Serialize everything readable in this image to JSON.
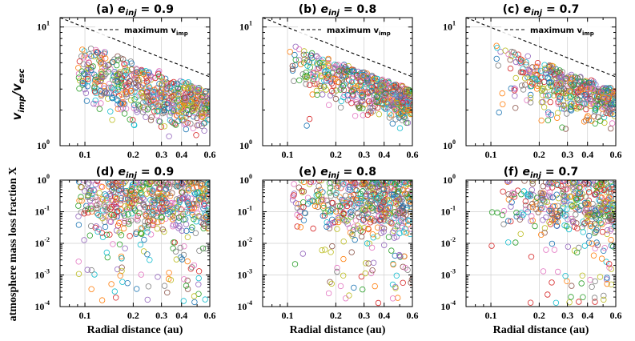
{
  "figure": {
    "xlabel": "Radial distance (au)",
    "ylabel_top": "v_imp/v_esc",
    "ylabel_bottom": "atmosphere mass loss fraction X",
    "legend_label": "maximum v_imp",
    "colors": [
      "#1f77b4",
      "#ff7f0e",
      "#2ca02c",
      "#d62728",
      "#9467bd",
      "#8c564b",
      "#e377c2",
      "#7f7f7f",
      "#bcbd22",
      "#17becf"
    ]
  },
  "chart_data": [
    {
      "type": "scatter",
      "panel": "a",
      "row": "top",
      "title": "(a) e_inj = 0.9",
      "title_prefix": "(a) ",
      "title_sub": "inj",
      "title_value": " = 0.9",
      "e_inj": 0.9,
      "xscale": "log",
      "yscale": "log",
      "xlim": [
        0.07,
        0.6
      ],
      "ylim": [
        1,
        12
      ],
      "xticks": [
        0.1,
        0.2,
        0.3,
        0.4,
        0.6
      ],
      "xticklabels": [
        "0.1",
        "0.2",
        "0.3",
        "0.4",
        "0.6"
      ],
      "yticks": [
        1,
        10
      ],
      "yticklabels": [
        "10^0",
        "10^1"
      ],
      "grid": true,
      "legend": {
        "entries": [
          "maximum v_imp"
        ],
        "position": "upper-right"
      },
      "max_line": {
        "x": [
          0.07,
          0.6
        ],
        "y": [
          12,
          3.8
        ]
      },
      "points_summary": {
        "x_range": [
          0.09,
          0.6
        ],
        "y_range": [
          1.2,
          9.5
        ],
        "approx_count": 600
      }
    },
    {
      "type": "scatter",
      "panel": "b",
      "row": "top",
      "title": "(b) e_inj = 0.8",
      "title_prefix": "(b) ",
      "title_sub": "inj",
      "title_value": " = 0.8",
      "e_inj": 0.8,
      "xscale": "log",
      "yscale": "log",
      "xlim": [
        0.07,
        0.6
      ],
      "ylim": [
        1,
        12
      ],
      "xticks": [
        0.1,
        0.2,
        0.3,
        0.4,
        0.6
      ],
      "xticklabels": [
        "0.1",
        "0.2",
        "0.3",
        "0.4",
        "0.6"
      ],
      "yticks": [
        1,
        10
      ],
      "yticklabels": [
        "10^0",
        "10^1"
      ],
      "grid": true,
      "legend": {
        "entries": [
          "maximum v_imp"
        ],
        "position": "upper-right"
      },
      "max_line": {
        "x": [
          0.07,
          0.6
        ],
        "y": [
          12,
          3.8
        ]
      },
      "points_summary": {
        "x_range": [
          0.1,
          0.6
        ],
        "y_range": [
          1.0,
          6.5
        ],
        "approx_count": 550
      }
    },
    {
      "type": "scatter",
      "panel": "c",
      "row": "top",
      "title": "(c) e_inj = 0.7",
      "title_prefix": "(c) ",
      "title_sub": "inj",
      "title_value": " = 0.7",
      "e_inj": 0.7,
      "xscale": "log",
      "yscale": "log",
      "xlim": [
        0.07,
        0.6
      ],
      "ylim": [
        1,
        12
      ],
      "xticks": [
        0.1,
        0.2,
        0.3,
        0.4,
        0.6
      ],
      "xticklabels": [
        "0.1",
        "0.2",
        "0.3",
        "0.4",
        "0.6"
      ],
      "yticks": [
        1,
        10
      ],
      "yticklabels": [
        "10^0",
        "10^1"
      ],
      "grid": true,
      "legend": {
        "entries": [
          "maximum v_imp"
        ],
        "position": "upper-right"
      },
      "max_line": {
        "x": [
          0.07,
          0.6
        ],
        "y": [
          12,
          3.8
        ]
      },
      "points_summary": {
        "x_range": [
          0.1,
          0.6
        ],
        "y_range": [
          1.0,
          6.5
        ],
        "approx_count": 450
      }
    },
    {
      "type": "scatter",
      "panel": "d",
      "row": "bottom",
      "title": "(d) e_inj = 0.9",
      "title_prefix": "(d) ",
      "title_sub": "inj",
      "title_value": " = 0.9",
      "e_inj": 0.9,
      "xscale": "log",
      "yscale": "log",
      "xlim": [
        0.07,
        0.6
      ],
      "ylim": [
        0.0001,
        1
      ],
      "xticks": [
        0.1,
        0.2,
        0.3,
        0.4,
        0.6
      ],
      "xticklabels": [
        "0.1",
        "0.2",
        "0.3",
        "0.4",
        "0.6"
      ],
      "yticks": [
        0.0001,
        0.001,
        0.01,
        0.1,
        1
      ],
      "yticklabels": [
        "10^-4",
        "10^-3",
        "10^-2",
        "10^-1",
        "10^0"
      ],
      "grid": true,
      "points_summary": {
        "x_range": [
          0.09,
          0.6
        ],
        "y_range": [
          0.0001,
          1
        ],
        "approx_count": 600
      }
    },
    {
      "type": "scatter",
      "panel": "e",
      "row": "bottom",
      "title": "(e) e_inj = 0.8",
      "title_prefix": "(e) ",
      "title_sub": "inj",
      "title_value": " = 0.8",
      "e_inj": 0.8,
      "xscale": "log",
      "yscale": "log",
      "xlim": [
        0.07,
        0.6
      ],
      "ylim": [
        0.0001,
        1
      ],
      "xticks": [
        0.1,
        0.2,
        0.3,
        0.4,
        0.6
      ],
      "xticklabels": [
        "0.1",
        "0.2",
        "0.3",
        "0.4",
        "0.6"
      ],
      "yticks": [
        0.0001,
        0.001,
        0.01,
        0.1,
        1
      ],
      "yticklabels": [
        "10^-4",
        "10^-3",
        "10^-2",
        "10^-1",
        "10^0"
      ],
      "grid": true,
      "points_summary": {
        "x_range": [
          0.1,
          0.6
        ],
        "y_range": [
          0.0001,
          1
        ],
        "approx_count": 550
      }
    },
    {
      "type": "scatter",
      "panel": "f",
      "row": "bottom",
      "title": "(f) e_inj = 0.7",
      "title_prefix": "(f) ",
      "title_sub": "inj",
      "title_value": " = 0.7",
      "e_inj": 0.7,
      "xscale": "log",
      "yscale": "log",
      "xlim": [
        0.07,
        0.6
      ],
      "ylim": [
        0.0001,
        1
      ],
      "xticks": [
        0.1,
        0.2,
        0.3,
        0.4,
        0.6
      ],
      "xticklabels": [
        "0.1",
        "0.2",
        "0.3",
        "0.4",
        "0.6"
      ],
      "yticks": [
        0.0001,
        0.001,
        0.01,
        0.1,
        1
      ],
      "yticklabels": [
        "10^-4",
        "10^-3",
        "10^-2",
        "10^-1",
        "10^0"
      ],
      "grid": true,
      "points_summary": {
        "x_range": [
          0.1,
          0.6
        ],
        "y_range": [
          0.0001,
          1
        ],
        "approx_count": 450
      }
    }
  ]
}
